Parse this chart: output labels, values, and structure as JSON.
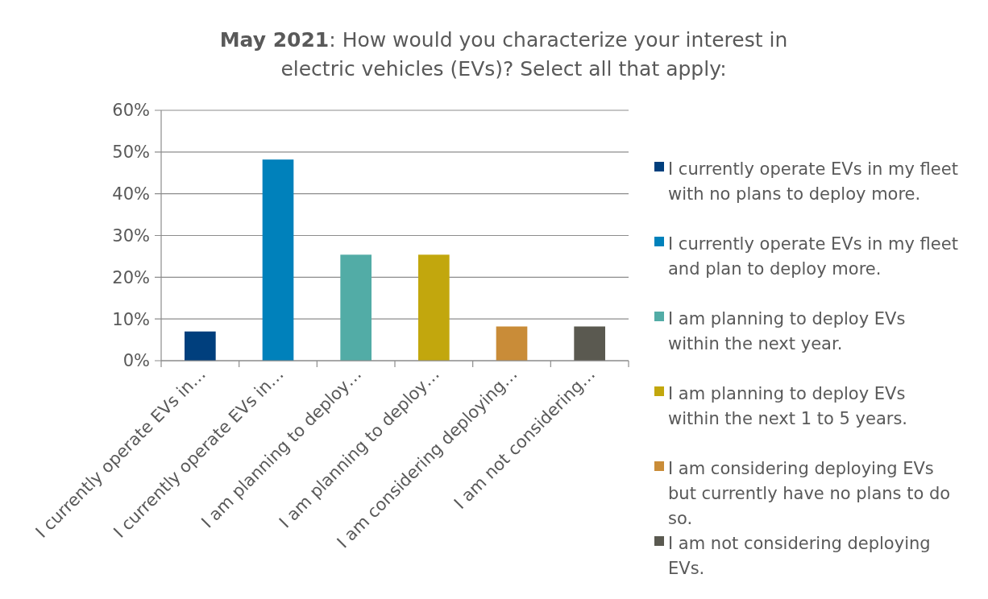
{
  "chart_data": {
    "type": "bar",
    "title": "May 2021: How would you characterize your interest in electric vehicles (EVs)? Select all that apply:",
    "categories": [
      "I currently operate EVs in…",
      "I currently operate EVs in…",
      "I am planning to deploy…",
      "I am planning to deploy…",
      "I am considering deploying…",
      "I am not considering…"
    ],
    "series": [
      {
        "name": "I currently operate EVs in my fleet with no plans to deploy more.",
        "color": "#003f7d",
        "values": [
          7,
          null,
          null,
          null,
          null,
          null
        ]
      },
      {
        "name": "I currently operate EVs in my fleet and plan to deploy more.",
        "color": "#0081bb",
        "values": [
          null,
          48.2,
          null,
          null,
          null,
          null
        ]
      },
      {
        "name": "I am planning to deploy EVs within the next year.",
        "color": "#52aca6",
        "values": [
          null,
          null,
          25.4,
          null,
          null,
          null
        ]
      },
      {
        "name": "I am planning to deploy EVs within the next 1 to 5 years.",
        "color": "#c2a70d",
        "values": [
          null,
          null,
          null,
          25.4,
          null,
          null
        ]
      },
      {
        "name": "I am considering deploying EVs but currently have no plans to do so.",
        "color": "#c98c38",
        "values": [
          null,
          null,
          null,
          null,
          8.2,
          null
        ]
      },
      {
        "name": "I am not considering deploying EVs.",
        "color": "#5a5950",
        "values": [
          null,
          null,
          null,
          null,
          null,
          8.2
        ]
      }
    ],
    "ylim": [
      0,
      60
    ],
    "yticks": [
      {
        "value": 0,
        "label": "0%"
      },
      {
        "value": 10,
        "label": "10%"
      },
      {
        "value": 20,
        "label": "20%"
      },
      {
        "value": 30,
        "label": "30%"
      },
      {
        "value": 40,
        "label": "40%"
      },
      {
        "value": 50,
        "label": "50%"
      },
      {
        "value": 60,
        "label": "60%"
      }
    ],
    "grid": "y",
    "legend": "right"
  }
}
